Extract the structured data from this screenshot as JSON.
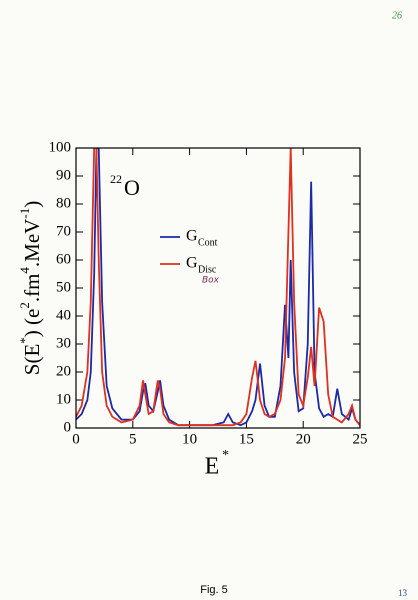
{
  "page_number": "26",
  "footer": "Fig. 5",
  "corner_number": "13",
  "chart_data": {
    "type": "line",
    "annotation": {
      "superscript": "22",
      "text": "O"
    },
    "xlabel": {
      "text": "E",
      "superscript": "*"
    },
    "ylabel_parts": [
      {
        "text": "S(E"
      },
      {
        "text": "*",
        "sup": true
      },
      {
        "text": ") (e"
      },
      {
        "text": "2",
        "sup": true
      },
      {
        "text": ".fm"
      },
      {
        "text": "4",
        "sup": true
      },
      {
        "text": ".MeV"
      },
      {
        "text": "-1",
        "sup": true
      },
      {
        "text": ")"
      }
    ],
    "x": [
      0,
      0.5,
      1,
      1.3,
      1.6,
      1.8,
      2.0,
      2.3,
      2.7,
      3.2,
      4,
      5,
      5.6,
      5.9,
      6.1,
      6.4,
      6.8,
      7.2,
      7.4,
      7.7,
      8.2,
      9,
      10,
      11,
      12,
      13,
      13.4,
      13.8,
      14.5,
      15,
      15.5,
      15.8,
      16.2,
      16.6,
      17,
      17.5,
      18,
      18.4,
      18.7,
      18.9,
      19.2,
      19.6,
      20,
      20.4,
      20.7,
      21,
      21.4,
      21.8,
      22.2,
      22.6,
      23,
      23.4,
      24,
      24.3,
      24.6,
      25
    ],
    "series": [
      {
        "name": "G",
        "subscript": "Cont",
        "color": "#1a2aa8",
        "values": [
          3,
          5,
          10,
          20,
          55,
          100,
          100,
          45,
          15,
          7,
          3,
          3,
          6,
          13,
          16,
          8,
          6,
          13,
          17,
          8,
          3,
          1,
          1,
          1,
          1,
          2,
          5,
          2,
          1,
          2,
          6,
          10,
          23,
          8,
          4,
          4,
          15,
          44,
          25,
          60,
          20,
          6,
          7,
          30,
          88,
          20,
          7,
          4,
          5,
          4,
          14,
          5,
          3,
          7,
          3,
          1
        ]
      },
      {
        "name": "G",
        "subscript": "Disc",
        "handwritten_note": "Box",
        "color": "#e0301e",
        "values": [
          4,
          8,
          20,
          45,
          100,
          100,
          60,
          20,
          8,
          4,
          2,
          3,
          8,
          17,
          12,
          5,
          6,
          17,
          14,
          5,
          2,
          1,
          1,
          1,
          1,
          1,
          1,
          1,
          2,
          5,
          18,
          24,
          10,
          5,
          4,
          5,
          10,
          25,
          70,
          100,
          45,
          12,
          8,
          18,
          29,
          15,
          43,
          38,
          12,
          4,
          3,
          2,
          5,
          8,
          3,
          1
        ]
      }
    ],
    "xlim": [
      0,
      25
    ],
    "xticks": [
      0,
      5,
      10,
      15,
      20,
      25
    ],
    "ylim": [
      0,
      100
    ],
    "yticks": [
      0,
      10,
      20,
      30,
      40,
      50,
      60,
      70,
      80,
      90,
      100
    ]
  }
}
